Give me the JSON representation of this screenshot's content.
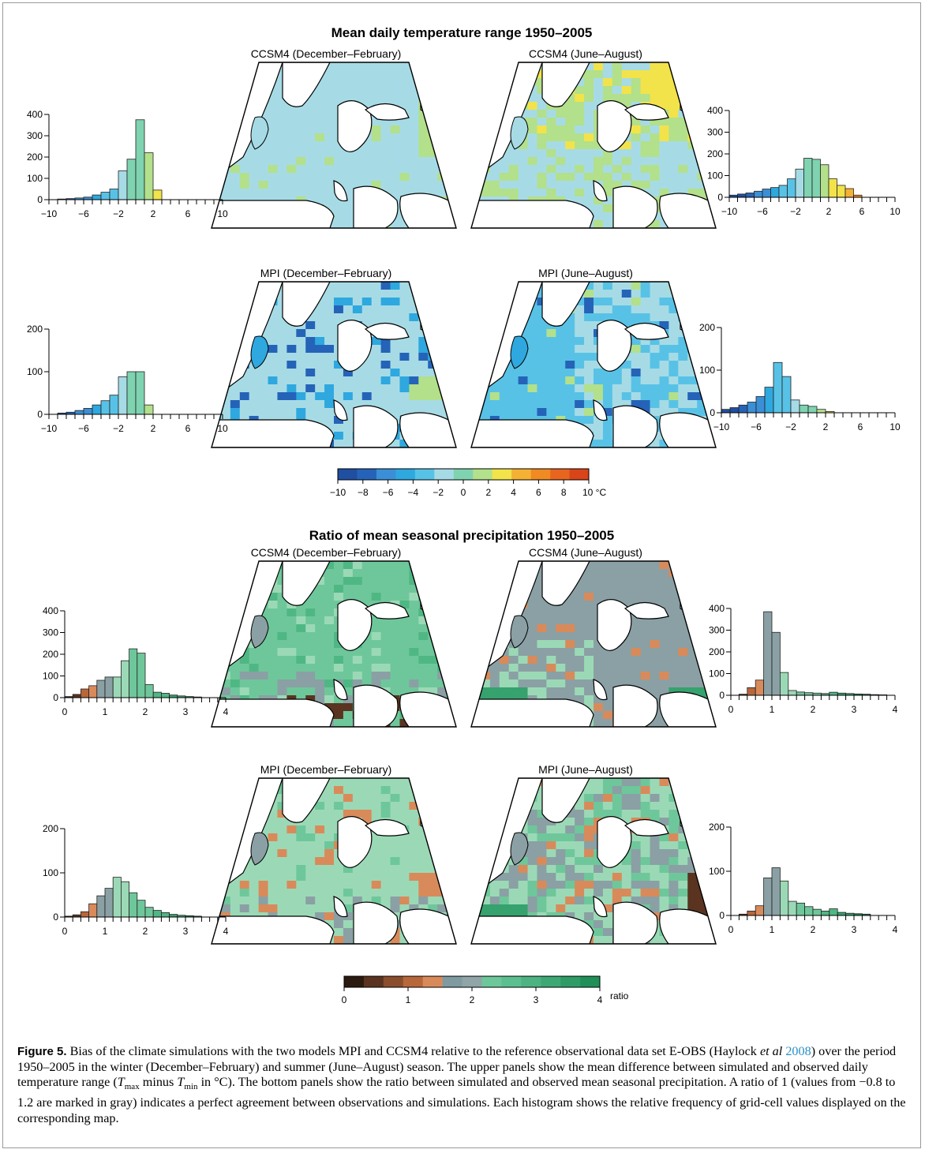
{
  "figure": {
    "sections": [
      {
        "id": "dtr",
        "title": "Mean daily temperature range 1950–2005",
        "panels": [
          {
            "id": "ccsm4-djf",
            "title": "CCSM4 (December–February)"
          },
          {
            "id": "ccsm4-jja",
            "title": "CCSM4 (June–August)"
          },
          {
            "id": "mpi-djf",
            "title": "MPI (December–February)"
          },
          {
            "id": "mpi-jja",
            "title": "MPI (June–August)"
          }
        ],
        "colorbar": {
          "ticks": [
            "−10",
            "−8",
            "−6",
            "−4",
            "−2",
            "0",
            "2",
            "4",
            "6",
            "8",
            "10 °C"
          ],
          "colors": [
            "#1f4fa0",
            "#2563b8",
            "#3b8fd6",
            "#2ea8df",
            "#58c2e6",
            "#a6dbe6",
            "#7fd3b0",
            "#b3e08a",
            "#f2e34a",
            "#f5b134",
            "#f08a22",
            "#e8651f",
            "#d94418"
          ]
        }
      },
      {
        "id": "pr",
        "title": "Ratio of mean seasonal precipitation 1950–2005",
        "panels": [
          {
            "id": "ccsm4-djf",
            "title": "CCSM4 (December–February)"
          },
          {
            "id": "ccsm4-jja",
            "title": "CCSM4 (June–August)"
          },
          {
            "id": "mpi-djf",
            "title": "MPI (December–February)"
          },
          {
            "id": "mpi-jja",
            "title": "MPI (June–August)"
          }
        ],
        "colorbar": {
          "ticks": [
            "0",
            "1",
            "2",
            "3",
            "4"
          ],
          "unit": "ratio",
          "colors": [
            "#2b1a10",
            "#5a3420",
            "#8a4e2c",
            "#b8673a",
            "#d98a5a",
            "#7f9aa0",
            "#8fa5a8",
            "#6cc79a",
            "#5cbf8f",
            "#4db382",
            "#3ea874",
            "#2f9c66",
            "#208f58"
          ]
        }
      }
    ],
    "chart_data": [
      {
        "type": "bar",
        "panel": "dtr-ccsm4-djf",
        "x": [
          -9,
          -8,
          -7,
          -6,
          -5,
          -4,
          -3,
          -2,
          -1,
          0,
          1,
          2
        ],
        "values": [
          3,
          5,
          8,
          12,
          22,
          35,
          50,
          135,
          190,
          375,
          220,
          45
        ],
        "xticks": [
          "−10",
          "−6",
          "−2",
          "2",
          "6",
          "10"
        ],
        "xlim": [
          -10,
          10
        ],
        "yticks": [
          "0",
          "100",
          "200",
          "300",
          "400"
        ],
        "ylim": [
          0,
          400
        ]
      },
      {
        "type": "bar",
        "panel": "dtr-ccsm4-jja",
        "x": [
          -10,
          -9,
          -8,
          -7,
          -6,
          -5,
          -4,
          -3,
          -2,
          -1,
          0,
          1,
          2,
          3,
          4,
          5
        ],
        "values": [
          10,
          15,
          20,
          28,
          38,
          45,
          55,
          85,
          130,
          180,
          175,
          150,
          85,
          55,
          40,
          10
        ],
        "xticks": [
          "−10",
          "−6",
          "−2",
          "2",
          "6",
          "10"
        ],
        "xlim": [
          -10,
          10
        ],
        "yticks": [
          "0",
          "100",
          "200",
          "300",
          "400"
        ],
        "ylim": [
          0,
          400
        ]
      },
      {
        "type": "bar",
        "panel": "dtr-mpi-djf",
        "x": [
          -9,
          -8,
          -7,
          -6,
          -5,
          -4,
          -3,
          -2,
          -1,
          0,
          1
        ],
        "values": [
          3,
          5,
          9,
          14,
          22,
          32,
          45,
          88,
          100,
          100,
          22
        ],
        "xticks": [
          "−10",
          "−6",
          "−2",
          "2",
          "6",
          "10"
        ],
        "xlim": [
          -10,
          10
        ],
        "yticks": [
          "0",
          "100",
          "200"
        ],
        "ylim": [
          0,
          200
        ]
      },
      {
        "type": "bar",
        "panel": "dtr-mpi-jja",
        "x": [
          -10,
          -9,
          -8,
          -7,
          -6,
          -5,
          -4,
          -3,
          -2,
          -1,
          0,
          1,
          2
        ],
        "values": [
          8,
          12,
          18,
          25,
          38,
          60,
          118,
          85,
          30,
          18,
          15,
          8,
          3
        ],
        "xticks": [
          "−10",
          "−6",
          "−2",
          "2",
          "6",
          "10"
        ],
        "xlim": [
          -10,
          10
        ],
        "yticks": [
          "0",
          "100",
          "200"
        ],
        "ylim": [
          0,
          200
        ]
      },
      {
        "type": "bar",
        "panel": "pr-ccsm4-djf",
        "x": [
          0.1,
          0.3,
          0.5,
          0.7,
          0.9,
          1.1,
          1.3,
          1.5,
          1.7,
          1.9,
          2.1,
          2.3,
          2.5,
          2.7,
          2.9,
          3.1,
          3.3
        ],
        "values": [
          5,
          15,
          40,
          55,
          80,
          95,
          95,
          170,
          225,
          205,
          60,
          25,
          20,
          12,
          8,
          5,
          3
        ],
        "xticks": [
          "0",
          "1",
          "2",
          "3",
          "4"
        ],
        "xlim": [
          0,
          4
        ],
        "yticks": [
          "0",
          "100",
          "200",
          "300",
          "400"
        ],
        "ylim": [
          0,
          400
        ]
      },
      {
        "type": "bar",
        "panel": "pr-ccsm4-jja",
        "x": [
          0.3,
          0.5,
          0.7,
          0.9,
          1.1,
          1.3,
          1.5,
          1.7,
          1.9,
          2.1,
          2.3,
          2.5,
          2.7,
          2.9,
          3.1,
          3.3,
          3.5,
          3.7
        ],
        "values": [
          5,
          35,
          70,
          385,
          290,
          105,
          22,
          15,
          12,
          10,
          8,
          14,
          10,
          8,
          6,
          5,
          3,
          2
        ],
        "xticks": [
          "0",
          "1",
          "2",
          "3",
          "4"
        ],
        "xlim": [
          0,
          4
        ],
        "yticks": [
          "0",
          "100",
          "200",
          "300",
          "400"
        ],
        "ylim": [
          0,
          400
        ]
      },
      {
        "type": "bar",
        "panel": "pr-mpi-djf",
        "x": [
          0.1,
          0.3,
          0.5,
          0.7,
          0.9,
          1.1,
          1.3,
          1.5,
          1.7,
          1.9,
          2.1,
          2.3,
          2.5,
          2.7,
          2.9,
          3.1,
          3.3
        ],
        "values": [
          2,
          5,
          12,
          30,
          48,
          65,
          90,
          80,
          55,
          38,
          22,
          15,
          10,
          6,
          4,
          3,
          2
        ],
        "xticks": [
          "0",
          "1",
          "2",
          "3",
          "4"
        ],
        "xlim": [
          0,
          4
        ],
        "yticks": [
          "0",
          "100",
          "200"
        ],
        "ylim": [
          0,
          200
        ]
      },
      {
        "type": "bar",
        "panel": "pr-mpi-jja",
        "x": [
          0.3,
          0.5,
          0.7,
          0.9,
          1.1,
          1.3,
          1.5,
          1.7,
          1.9,
          2.1,
          2.3,
          2.5,
          2.7,
          2.9,
          3.1,
          3.3
        ],
        "values": [
          3,
          10,
          22,
          85,
          108,
          78,
          32,
          28,
          20,
          14,
          10,
          15,
          7,
          5,
          4,
          3
        ],
        "xticks": [
          "0",
          "1",
          "2",
          "3",
          "4"
        ],
        "xlim": [
          0,
          4
        ],
        "yticks": [
          "0",
          "100",
          "200"
        ],
        "ylim": [
          0,
          200
        ]
      }
    ]
  },
  "caption": {
    "label": "Figure 5.",
    "text_a": " Bias of the climate simulations with the two models MPI and CCSM4 relative to the reference observational data set E-OBS (Haylock ",
    "etal": "et al",
    "year": " 2008",
    "text_b": ") over the period 1950–2005 in the winter (December–February) and summer (June–August) season. The upper panels show the mean difference between simulated and observed daily temperature range (",
    "tmax": "T",
    "tmax_sub": "max",
    "minus": " minus ",
    "tmin": "T",
    "tmin_sub": "min",
    "text_c": " in °C). The bottom panels show the ratio between simulated and observed mean seasonal precipitation. A ratio of 1 (values from −0.8 to 1.2 are marked in gray) indicates a perfect agreement between observations and simulations. Each histogram shows the relative frequency of grid-cell values displayed on the corresponding map."
  }
}
